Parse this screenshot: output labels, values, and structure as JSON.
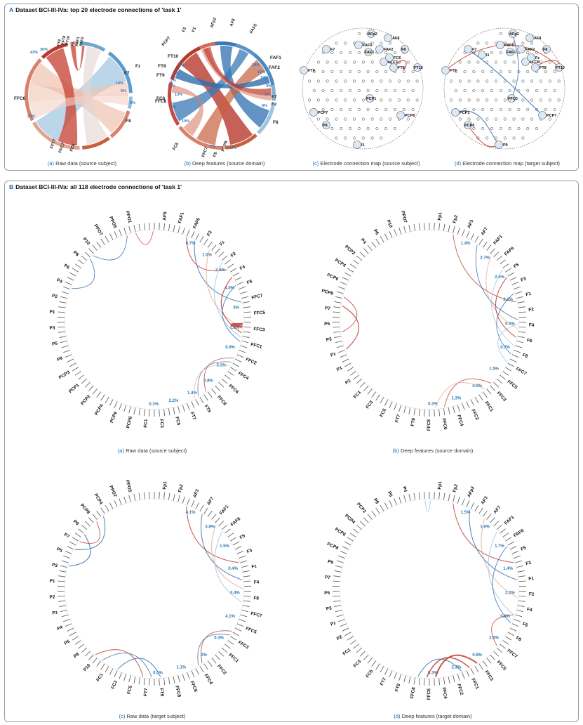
{
  "panel_a": {
    "letter": "A",
    "title": "Dataset BCI-III-IVa: top 20 electrode connections of 'task 1'",
    "captions": [
      {
        "label": "(a)",
        "text": "Raw data (source subject)"
      },
      {
        "label": "(b)",
        "text": "Deep features (source domain)"
      },
      {
        "label": "(c)",
        "text": "Electrode connection map (source subject)"
      },
      {
        "label": "(d)",
        "text": "Electrode connection map (target subject)"
      }
    ],
    "chord_a": {
      "labels": [
        "FFC6",
        "FT10",
        "FFT8",
        "FT8",
        "Fz",
        "F7",
        "F8",
        "FC5",
        "FFC7",
        "FFT7",
        "F5",
        "FAF1",
        "FAF2"
      ],
      "percents": [
        "20%",
        "5%",
        "9%",
        "43%",
        "30%",
        "10%"
      ]
    },
    "chord_b": {
      "labels": [
        "FT10",
        "FT8",
        "FT9",
        "PCP7",
        "PCP8",
        "F1",
        "AFp2",
        "AF8",
        "FAF5",
        "FAF1",
        "FAF2",
        "F7",
        "Fz",
        "F8",
        "FC6",
        "FFC7",
        "F8",
        "FFC8",
        "FC5",
        "F2"
      ],
      "percents": [
        "8%",
        "3%",
        "2%",
        "11%",
        "18%",
        "12%",
        "14%",
        "3%",
        "1%",
        "4%",
        "6%",
        "10%",
        "7%",
        "6%",
        "13%"
      ]
    },
    "map_c": {
      "labels": [
        "AFp2",
        "AF8",
        "FAF5",
        "FAF1",
        "FAF2",
        "F7",
        "F8",
        "FFC3",
        "FT8",
        "FT10",
        "FT9",
        "FC6",
        "PCP1",
        "PCP7",
        "PCP8",
        "P9",
        "I1"
      ]
    },
    "map_d": {
      "labels": [
        "AFp2",
        "AF8",
        "FAF5",
        "FAF1",
        "FAF2",
        "F7",
        "F8",
        "FFC8",
        "FT8",
        "FT10",
        "FT9",
        "Fz",
        "FFC5",
        "PCP1",
        "PCP7",
        "PCP8",
        "P9",
        "I1"
      ]
    }
  },
  "panel_b": {
    "letter": "B",
    "title": "Dataset BCI-III-IVa: all 118 electrode connections of 'task 1'",
    "captions": [
      {
        "label": "(a)",
        "text": "Raw data (source subject)"
      },
      {
        "label": "(b)",
        "text": "Deep features (source domain)"
      },
      {
        "label": "(c)",
        "text": "Raw data (target subject)"
      },
      {
        "label": "(d)",
        "text": "Deep features (target domain)"
      }
    ],
    "chords": [
      {
        "name": "raw-source",
        "labels": [
          "AF5",
          "FAF1",
          "FAF6",
          "F3",
          "Fz",
          "F2",
          "F4",
          "F8",
          "FFC7",
          "FFC5",
          "FFC3",
          "FFC1",
          "FFC2",
          "FFC4",
          "FFC6",
          "FFC8",
          "FT9",
          "FT7",
          "FC5",
          "FC3",
          "FC1",
          "PCP8",
          "PCP6",
          "PCP4",
          "PCP2",
          "PCP1",
          "PCP3",
          "P9",
          "P5",
          "P3",
          "P1",
          "P2",
          "P4",
          "P6",
          "P8",
          "P10",
          "PPO7",
          "PPO5",
          "PPO1"
        ],
        "percents": [
          "0.7%",
          "1.5%",
          "2.5%",
          "4.5%",
          "5%",
          "2.6%",
          "0.9%",
          "3.1%",
          "0.8%",
          "1.4%",
          "2.2%",
          "0.3%"
        ]
      },
      {
        "name": "deep-source",
        "labels": [
          "Fp1",
          "Fp2",
          "AF3",
          "AF7",
          "FAF1",
          "FAF6",
          "F5",
          "F3",
          "F1",
          "F2",
          "F4",
          "F6",
          "F8",
          "FFC7",
          "FFC5",
          "FFC3",
          "FFC1",
          "FFC2",
          "FFC4",
          "FFC6",
          "FFC8",
          "FT9",
          "FT7",
          "FC5",
          "FC3",
          "FC1",
          "P2",
          "P1",
          "Pz",
          "P3",
          "P5",
          "P7",
          "PCP8",
          "PCP6",
          "PCP4",
          "PCP2",
          "P4",
          "P6",
          "P10",
          "PPO7"
        ],
        "percents": [
          "1.4%",
          "2.7%",
          "2.6%",
          "2.1%",
          "0.5%",
          "0.7%",
          "1.5%",
          "0.9%",
          "1.3%",
          "0.3%"
        ]
      },
      {
        "name": "raw-target",
        "labels": [
          "Fp1",
          "Fp2",
          "AF3",
          "AF7",
          "FAF1",
          "FAF6",
          "F5",
          "F3",
          "Fz",
          "F4",
          "F8",
          "FFC7",
          "FFC5",
          "FFC3",
          "FFC1",
          "FFC2",
          "FFC4",
          "FFC6",
          "FFC8",
          "FT9",
          "FT7",
          "FC5",
          "FC3",
          "FC1",
          "P10",
          "P8",
          "P6",
          "P4",
          "Pz",
          "P2",
          "P1",
          "P3",
          "P5",
          "P7",
          "P9",
          "PCP8",
          "PCP4",
          "PPO7",
          "PPO5"
        ],
        "percents": [
          "4.1%",
          "3.8%",
          "1.5%",
          "0.4%",
          "0.4%",
          "4.1%",
          "0.3%",
          "2%",
          "1.1%",
          "0.5%"
        ]
      },
      {
        "name": "deep-target",
        "labels": [
          "Fp1",
          "Fp2",
          "AFp2",
          "AF3",
          "AF7",
          "FAF1",
          "FAF6",
          "F5",
          "F3",
          "F1",
          "F2",
          "F4",
          "F6",
          "F8",
          "FFC7",
          "FFC5",
          "FFC3",
          "FFC1",
          "FFC2",
          "FFC4",
          "FFC6",
          "FFC8",
          "FT9",
          "FT7",
          "FC5",
          "FC3",
          "FC1",
          "P2",
          "Pz",
          "P3",
          "P5",
          "P7",
          "P9",
          "PCP8",
          "PCP6",
          "PCP4",
          "PCP2",
          "P8",
          "P6",
          "P4"
        ],
        "percents": [
          "1.5%",
          "1.6%",
          "1.7%",
          "1.4%",
          "2.2%",
          "0.6%",
          "2.6%",
          "0.9%",
          "2.3%",
          "0.3%"
        ]
      }
    ]
  },
  "colors": {
    "red": "#c0392b",
    "blue": "#2f6fad",
    "lightred": "#e8a898",
    "lightblue": "#9ec5e0",
    "label_blue": "#2a7ab8"
  }
}
